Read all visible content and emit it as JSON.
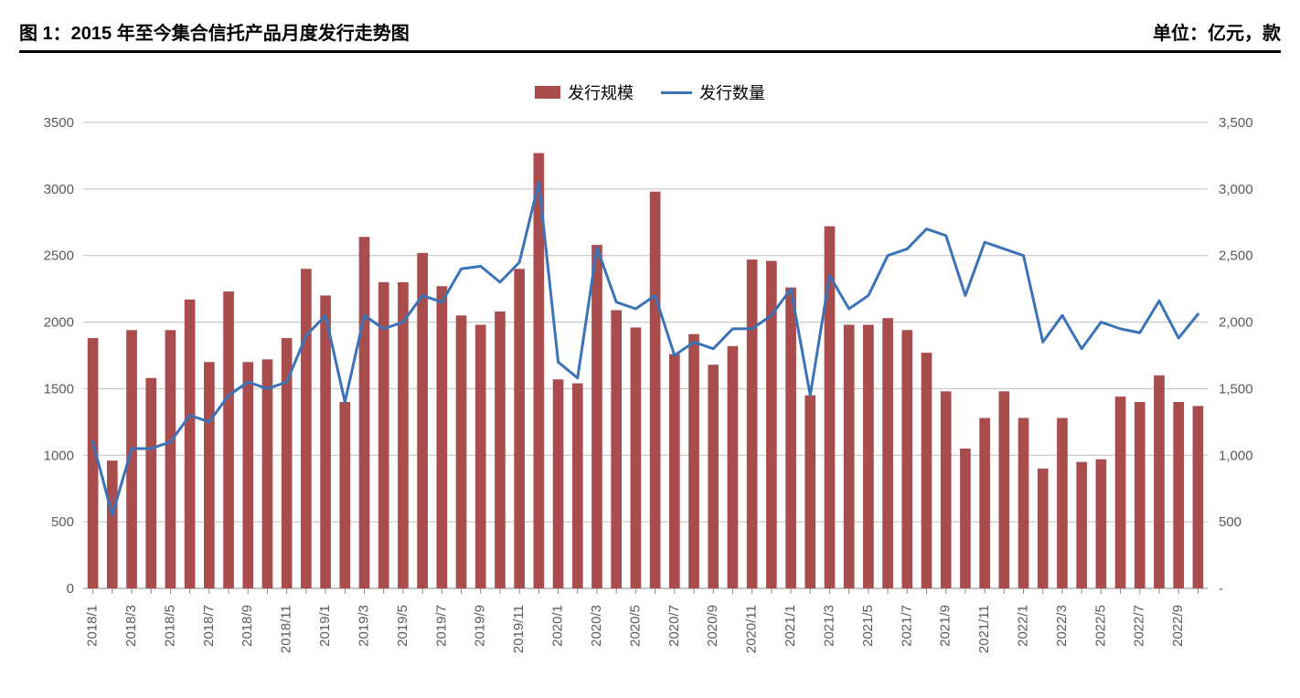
{
  "header": {
    "title": "图 1：2015 年至今集合信托产品月度发行走势图",
    "unit": "单位：亿元，款"
  },
  "legend": {
    "bar_label": "发行规模",
    "line_label": "发行数量"
  },
  "chart": {
    "type": "bar+line",
    "background_color": "#ffffff",
    "grid_color": "#bfbfbf",
    "axis_color": "#888888",
    "bar_color": "#a94c4c",
    "line_color": "#3b73b9",
    "text_color": "#595959",
    "bar_width_ratio": 0.55,
    "line_width": 3,
    "y_left": {
      "min": 0,
      "max": 3500,
      "step": 500
    },
    "y_right": {
      "min": 0,
      "max": 3500,
      "step": 500,
      "tick_labels": [
        "-",
        "500",
        "1,000",
        "1,500",
        "2,000",
        "2,500",
        "3,000",
        "3,500"
      ]
    },
    "x_labels_every": 2,
    "categories": [
      "2018/1",
      "2018/2",
      "2018/3",
      "2018/4",
      "2018/5",
      "2018/6",
      "2018/7",
      "2018/8",
      "2018/9",
      "2018/10",
      "2018/11",
      "2018/12",
      "2019/1",
      "2019/2",
      "2019/3",
      "2019/4",
      "2019/5",
      "2019/6",
      "2019/7",
      "2019/8",
      "2019/9",
      "2019/10",
      "2019/11",
      "2019/12",
      "2020/1",
      "2020/2",
      "2020/3",
      "2020/4",
      "2020/5",
      "2020/6",
      "2020/7",
      "2020/8",
      "2020/9",
      "2020/10",
      "2020/11",
      "2020/12",
      "2021/1",
      "2021/2",
      "2021/3",
      "2021/4",
      "2021/5",
      "2021/6",
      "2021/7",
      "2021/8",
      "2021/9",
      "2021/10",
      "2021/11",
      "2021/12",
      "2022/1",
      "2022/2",
      "2022/3",
      "2022/4",
      "2022/5",
      "2022/6",
      "2022/7",
      "2022/8",
      "2022/9",
      "2022/10"
    ],
    "bar_values": [
      1880,
      960,
      1940,
      1580,
      1940,
      2170,
      1700,
      2230,
      1700,
      1720,
      1880,
      2400,
      2200,
      1400,
      2640,
      2300,
      2300,
      2520,
      2270,
      2050,
      1980,
      2080,
      2400,
      3270,
      1570,
      1540,
      2580,
      2090,
      1960,
      2980,
      1760,
      1910,
      1680,
      1820,
      2470,
      2460,
      2260,
      1450,
      2720,
      1980,
      1980,
      2030,
      1940,
      1770,
      1480,
      1050,
      1280,
      1480,
      1280,
      900,
      1280,
      950,
      970,
      1440,
      1400,
      1600,
      1400,
      1370
    ],
    "line_values": [
      1100,
      550,
      1050,
      1050,
      1100,
      1300,
      1250,
      1450,
      1550,
      1500,
      1550,
      1900,
      2050,
      1400,
      2050,
      1950,
      2000,
      2200,
      2150,
      2400,
      2420,
      2300,
      2450,
      3050,
      1700,
      1580,
      2560,
      2150,
      2100,
      2200,
      1750,
      1850,
      1800,
      1950,
      1950,
      2050,
      2250,
      1450,
      2350,
      2100,
      2200,
      2500,
      2550,
      2700,
      2650,
      2200,
      2600,
      2550,
      2500,
      1850,
      2050,
      1800,
      2000,
      1950,
      1920,
      2160,
      1880,
      2060
    ],
    "title_fontsize": 20,
    "axis_fontsize": 15
  }
}
